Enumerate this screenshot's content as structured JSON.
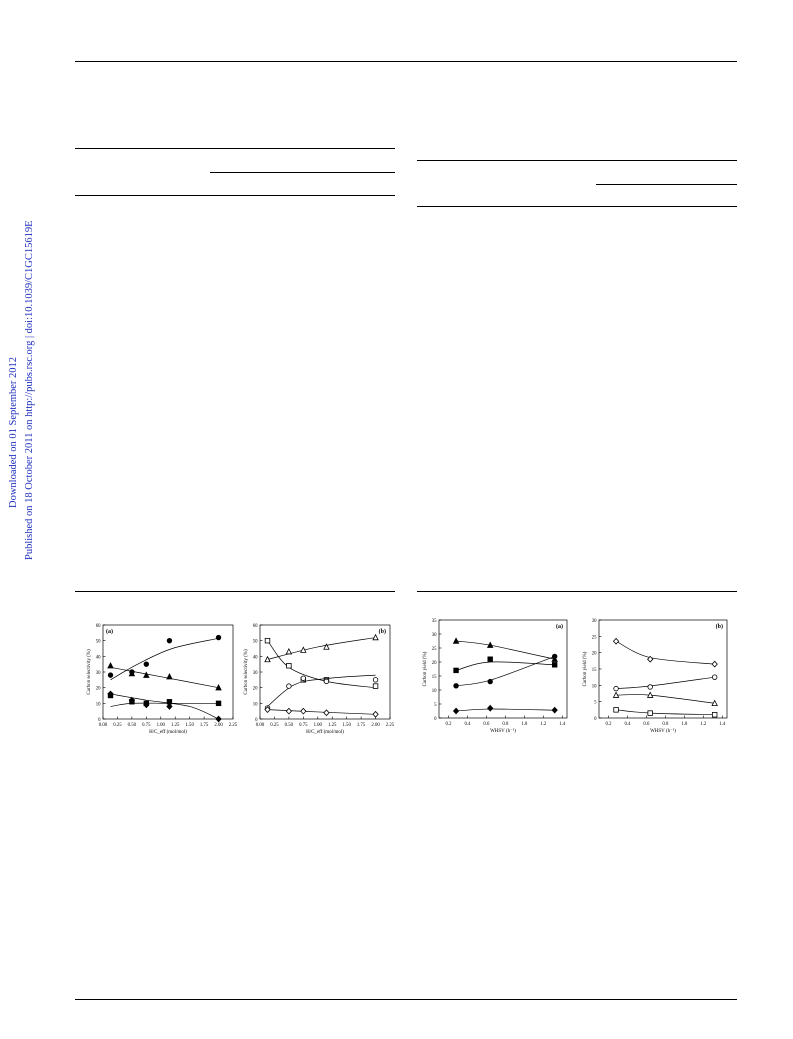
{
  "side_banner": {
    "line1": "Downloaded on 01 September 2012",
    "line2": "Published on 18 October 2011 on http://pubs.rsc.org | doi:10.1039/C1GC15619E"
  },
  "colors": {
    "side_text": "#1f2fbf",
    "ink": "#000000"
  },
  "figures": {
    "fig_a": {
      "chart_data": {
        "type": "scatter",
        "panel_label": "(a)",
        "xlabel": "H/C_eff (mol/mol)",
        "ylabel": "Carbon selectivity (%)",
        "xlim": [
          0,
          2.25
        ],
        "ylim": [
          0,
          60
        ],
        "xticks": [
          "0.00",
          "0.25",
          "0.50",
          "0.75",
          "1.00",
          "1.25",
          "1.50",
          "1.75",
          "2.00",
          "2.25"
        ],
        "yticks": [
          "0",
          "10",
          "20",
          "30",
          "40",
          "50",
          "60"
        ],
        "series": [
          {
            "marker": "filled-circle",
            "x": [
              0.13,
              0.5,
              0.75,
              1.15,
              2.0
            ],
            "y": [
              28,
              30,
              35,
              50,
              52
            ],
            "fit": [
              [
                0.13,
                25
              ],
              [
                0.6,
                35
              ],
              [
                1.2,
                45
              ],
              [
                2.0,
                51.5
              ]
            ]
          },
          {
            "marker": "filled-triangle",
            "x": [
              0.13,
              0.5,
              0.75,
              1.15,
              2.0
            ],
            "y": [
              34,
              29,
              28,
              27,
              20
            ],
            "fit": [
              [
                0.13,
                33
              ],
              [
                1.0,
                27
              ],
              [
                2.0,
                20
              ]
            ]
          },
          {
            "marker": "filled-square",
            "x": [
              0.13,
              0.5,
              0.75,
              1.15,
              2.0
            ],
            "y": [
              15,
              11,
              10,
              11,
              10
            ],
            "fit": [
              [
                0.13,
                8
              ],
              [
                0.5,
                10
              ],
              [
                1.15,
                10
              ],
              [
                2.0,
                10
              ]
            ]
          },
          {
            "marker": "filled-diamond",
            "x": [
              0.13,
              0.5,
              0.75,
              1.15,
              2.0
            ],
            "y": [
              16,
              12,
              9,
              8,
              0
            ],
            "fit": [
              [
                0.13,
                16
              ],
              [
                0.75,
                12
              ],
              [
                1.5,
                8
              ],
              [
                2.0,
                0
              ]
            ]
          }
        ]
      }
    },
    "fig_b": {
      "chart_data": {
        "type": "scatter",
        "panel_label": "(b)",
        "xlabel": "H/C_eff (mol/mol)",
        "ylabel": "Carbon selectivity (%)",
        "xlim": [
          0,
          2.25
        ],
        "ylim": [
          0,
          60
        ],
        "xticks": [
          "0.00",
          "0.25",
          "0.50",
          "0.75",
          "1.00",
          "1.25",
          "1.50",
          "1.75",
          "2.00",
          "2.25"
        ],
        "yticks": [
          "0",
          "10",
          "20",
          "30",
          "40",
          "50",
          "60"
        ],
        "series": [
          {
            "marker": "open-triangle",
            "x": [
              0.13,
              0.5,
              0.75,
              1.15,
              2.0
            ],
            "y": [
              38,
              43,
              44,
              46,
              52
            ],
            "fit": [
              [
                0.13,
                38
              ],
              [
                1.0,
                46
              ],
              [
                2.0,
                52
              ]
            ]
          },
          {
            "marker": "open-square",
            "x": [
              0.13,
              0.5,
              0.75,
              1.15,
              2.0
            ],
            "y": [
              50,
              34,
              25,
              25,
              21
            ],
            "fit": [
              [
                0.13,
                50
              ],
              [
                0.5,
                33
              ],
              [
                1.15,
                24
              ],
              [
                2.0,
                20
              ]
            ]
          },
          {
            "marker": "open-circle",
            "x": [
              0.13,
              0.5,
              0.75,
              1.15,
              2.0
            ],
            "y": [
              7,
              21,
              26,
              24,
              25
            ],
            "fit": [
              [
                0.13,
                8
              ],
              [
                0.6,
                22
              ],
              [
                1.2,
                26
              ],
              [
                2.0,
                28
              ]
            ]
          },
          {
            "marker": "open-diamond",
            "x": [
              0.13,
              0.5,
              0.75,
              1.15,
              2.0
            ],
            "y": [
              6,
              5,
              5,
              4,
              3
            ],
            "fit": [
              [
                0.13,
                6
              ],
              [
                1.0,
                4.5
              ],
              [
                2.0,
                3
              ]
            ]
          }
        ]
      }
    },
    "fig_c": {
      "chart_data": {
        "type": "scatter",
        "panel_label": "(a)",
        "xlabel": "WHSV (h⁻¹)",
        "ylabel": "Carbon yield (%)",
        "xlim": [
          0.1,
          1.45
        ],
        "ylim": [
          0,
          35
        ],
        "xticks": [
          "0.2",
          "0.4",
          "0.6",
          "0.8",
          "1.0",
          "1.2",
          "1.4"
        ],
        "yticks": [
          "0",
          "5",
          "10",
          "15",
          "20",
          "25",
          "30",
          "35"
        ],
        "series": [
          {
            "marker": "filled-triangle",
            "x": [
              0.28,
              0.64,
              1.32
            ],
            "y": [
              27.5,
              26,
              21
            ],
            "fit": [
              [
                0.28,
                27.5
              ],
              [
                0.64,
                26
              ],
              [
                1.32,
                21
              ]
            ]
          },
          {
            "marker": "filled-square",
            "x": [
              0.28,
              0.64,
              1.32
            ],
            "y": [
              17,
              21,
              19
            ],
            "fit": [
              [
                0.28,
                17
              ],
              [
                0.64,
                20
              ],
              [
                1.32,
                19
              ]
            ]
          },
          {
            "marker": "filled-circle",
            "x": [
              0.28,
              0.64,
              1.32
            ],
            "y": [
              11.5,
              13,
              22
            ],
            "fit": [
              [
                0.28,
                11.5
              ],
              [
                0.64,
                13.5
              ],
              [
                1.32,
                22
              ]
            ]
          },
          {
            "marker": "filled-diamond",
            "x": [
              0.28,
              0.64,
              1.32
            ],
            "y": [
              2.5,
              3.5,
              2.8
            ],
            "fit": [
              [
                0.28,
                2.5
              ],
              [
                0.64,
                3.2
              ],
              [
                1.32,
                2.8
              ]
            ]
          }
        ]
      }
    },
    "fig_d": {
      "chart_data": {
        "type": "scatter",
        "panel_label": "(b)",
        "xlabel": "WHSV (h⁻¹)",
        "ylabel": "Carbon yield (%)",
        "xlim": [
          0.1,
          1.45
        ],
        "ylim": [
          0,
          30
        ],
        "xticks": [
          "0.2",
          "0.4",
          "0.6",
          "0.8",
          "1.0",
          "1.2",
          "1.4"
        ],
        "yticks": [
          "0",
          "5",
          "10",
          "15",
          "20",
          "25",
          "30"
        ],
        "series": [
          {
            "marker": "open-diamond",
            "x": [
              0.28,
              0.64,
              1.32
            ],
            "y": [
              23.5,
              18,
              16.5
            ],
            "fit": [
              [
                0.28,
                23.5
              ],
              [
                0.64,
                18.5
              ],
              [
                1.32,
                16.5
              ]
            ]
          },
          {
            "marker": "open-circle",
            "x": [
              0.28,
              0.64,
              1.32
            ],
            "y": [
              9,
              9.5,
              12.5
            ],
            "fit": [
              [
                0.28,
                9
              ],
              [
                0.64,
                9.8
              ],
              [
                1.32,
                12.5
              ]
            ]
          },
          {
            "marker": "open-triangle",
            "x": [
              0.28,
              0.64,
              1.32
            ],
            "y": [
              7,
              7,
              4.5
            ],
            "fit": [
              [
                0.28,
                7
              ],
              [
                0.64,
                7
              ],
              [
                1.32,
                4.5
              ]
            ]
          },
          {
            "marker": "open-square",
            "x": [
              0.28,
              0.64,
              1.32
            ],
            "y": [
              2.5,
              1.5,
              1
            ],
            "fit": [
              [
                0.28,
                2.5
              ],
              [
                0.64,
                1.5
              ],
              [
                1.32,
                1
              ]
            ]
          }
        ]
      }
    }
  }
}
